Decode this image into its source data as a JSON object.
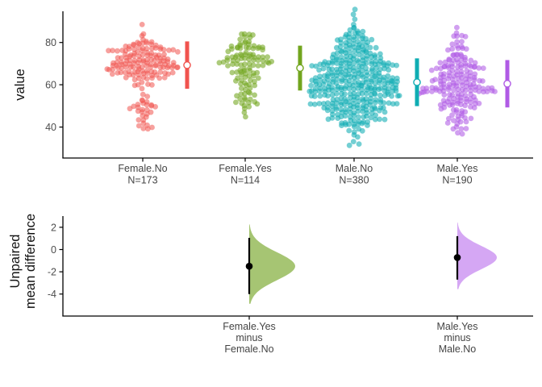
{
  "figure": {
    "background": "#FFFFFF",
    "axis_color": "#000000",
    "tick_text_color": "#4D4D4D"
  },
  "chart_data": {
    "type": "estimation-plot (beeswarm groups + unpaired mean difference half-violins)",
    "panels": [
      {
        "type": "beeswarm",
        "ylabel": "value",
        "ylim": [
          25,
          97
        ],
        "yticks": [
          80,
          60,
          40
        ],
        "ytick_labels": [
          "80",
          "60",
          "40"
        ],
        "grid": false,
        "groups": [
          {
            "label": "Female.No",
            "n_label": "N=173",
            "n": 173,
            "mean": 69.3,
            "sd": 11.2,
            "color": "#F0534E",
            "dot_opacity": 0.55,
            "shape_mixture": [
              {
                "w": 0.8,
                "mu": 71.2,
                "sd": 5.4
              },
              {
                "w": 0.17,
                "mu": 50.0,
                "sd": 3.4
              },
              {
                "w": 0.03,
                "mu": 40.8,
                "sd": 1.2
              }
            ],
            "clip": [
              38.5,
              91.0
            ],
            "max_half_width": 46
          },
          {
            "label": "Female.Yes",
            "n_label": "N=114",
            "n": 114,
            "mean": 67.9,
            "sd": 10.6,
            "color": "#72A51E",
            "dot_opacity": 0.58,
            "shape_mixture": [
              {
                "w": 0.52,
                "mu": 74.0,
                "sd": 4.3
              },
              {
                "w": 0.48,
                "mu": 61.5,
                "sd": 7.4
              }
            ],
            "clip": [
              44.0,
              86.0
            ],
            "max_half_width": 36
          },
          {
            "label": "Male.No",
            "n_label": "N=380",
            "n": 380,
            "mean": 61.2,
            "sd": 11.3,
            "color": "#0FADB3",
            "dot_opacity": 0.58,
            "shape_mixture": [
              {
                "w": 1.0,
                "mu": 61.2,
                "sd": 11.8
              }
            ],
            "clip": [
              30.5,
              97.5
            ],
            "max_half_width": 57
          },
          {
            "label": "Male.Yes",
            "n_label": "N=190",
            "n": 190,
            "mean": 60.5,
            "sd": 11.2,
            "color": "#B05BE5",
            "dot_opacity": 0.58,
            "shape_mixture": [
              {
                "w": 1.0,
                "mu": 60.5,
                "sd": 10.0
              }
            ],
            "clip": [
              36.5,
              88.5
            ],
            "max_half_width": 50
          }
        ]
      },
      {
        "type": "halfviolin-contrast",
        "ylabel_lines": [
          "Unpaired",
          "mean difference"
        ],
        "ylim": [
          -5.6,
          2.9
        ],
        "yticks": [
          2,
          0,
          -2,
          -4
        ],
        "ytick_labels": [
          "2",
          "0",
          "-2",
          "-4"
        ],
        "grid": false,
        "contrasts": [
          {
            "label_lines": [
              "Female.Yes",
              "minus",
              "Female.No"
            ],
            "mean_difference": -1.5,
            "ci_low": -4.0,
            "ci_high": 1.05,
            "violin_sigma": 1.25,
            "violin_color": "#A6C573",
            "interval_color": "#000000"
          },
          {
            "label_lines": [
              "Male.Yes",
              "minus",
              "Male.No"
            ],
            "mean_difference": -0.72,
            "ci_low": -2.7,
            "ci_high": 1.2,
            "violin_sigma": 1.05,
            "violin_color": "#D5A7F4",
            "interval_color": "#000000"
          }
        ]
      }
    ]
  }
}
